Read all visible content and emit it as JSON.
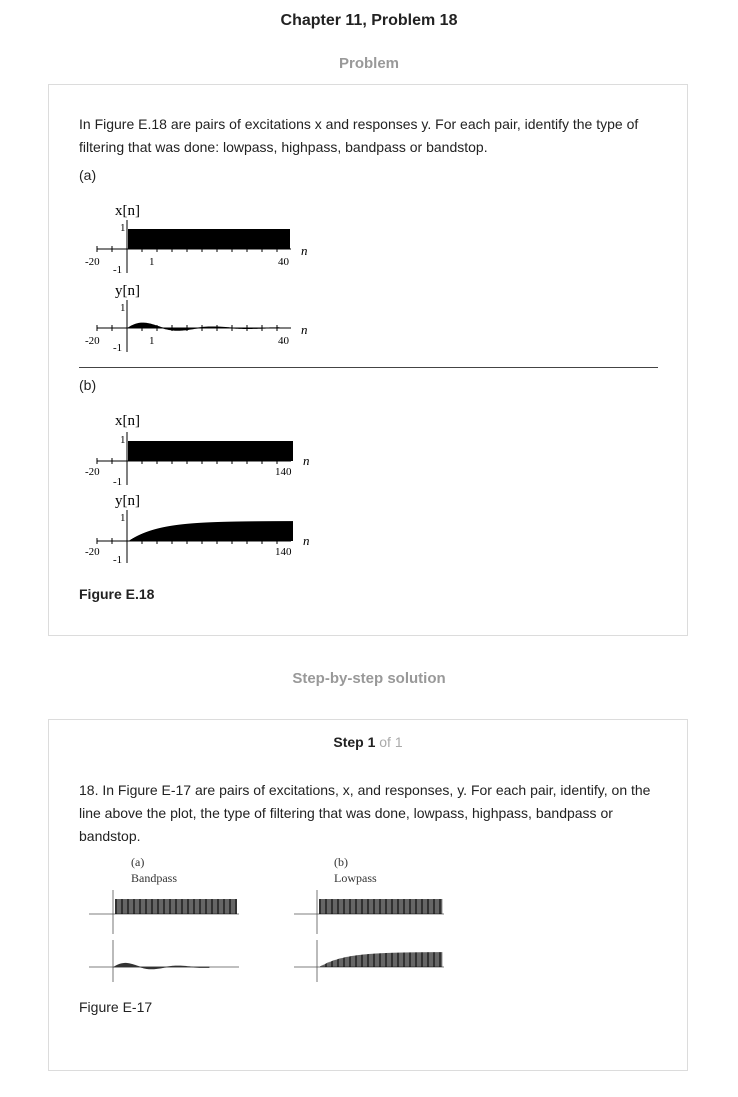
{
  "header": {
    "title": "Chapter 11, Problem 18"
  },
  "problem": {
    "section_label": "Problem",
    "text": "In Figure E.18 are pairs of excitations x and responses y. For each pair, identify the type of filtering that was done: lowpass, highpass, bandpass or bandstop.",
    "part_a_label": "(a)",
    "part_b_label": "(b)",
    "figure_caption": "Figure E.18",
    "plot_a": {
      "x_label": "x[n]",
      "y_label": "y[n]",
      "tick_one": "1",
      "tick_neg_one": "-1",
      "tick_neg20": "-20",
      "tick_1": "1",
      "tick_40": "40",
      "n_label": "n"
    },
    "plot_b": {
      "x_label": "x[n]",
      "y_label": "y[n]",
      "tick_one": "1",
      "tick_neg_one": "-1",
      "tick_neg20": "-20",
      "tick_140": "140",
      "n_label": "n"
    }
  },
  "solution": {
    "section_label": "Step-by-step solution",
    "step_word": "Step 1",
    "step_of": "of 1",
    "text": "18. In Figure E-17 are pairs of excitations, x, and responses, y. For each pair, identify, on the line above the plot, the type of filtering that was done, lowpass, highpass, bandpass or bandstop.",
    "figure_caption": "Figure E-17",
    "left_plot": {
      "part": "(a)",
      "answer": "Bandpass"
    },
    "right_plot": {
      "part": "(b)",
      "answer": "Lowpass"
    }
  }
}
